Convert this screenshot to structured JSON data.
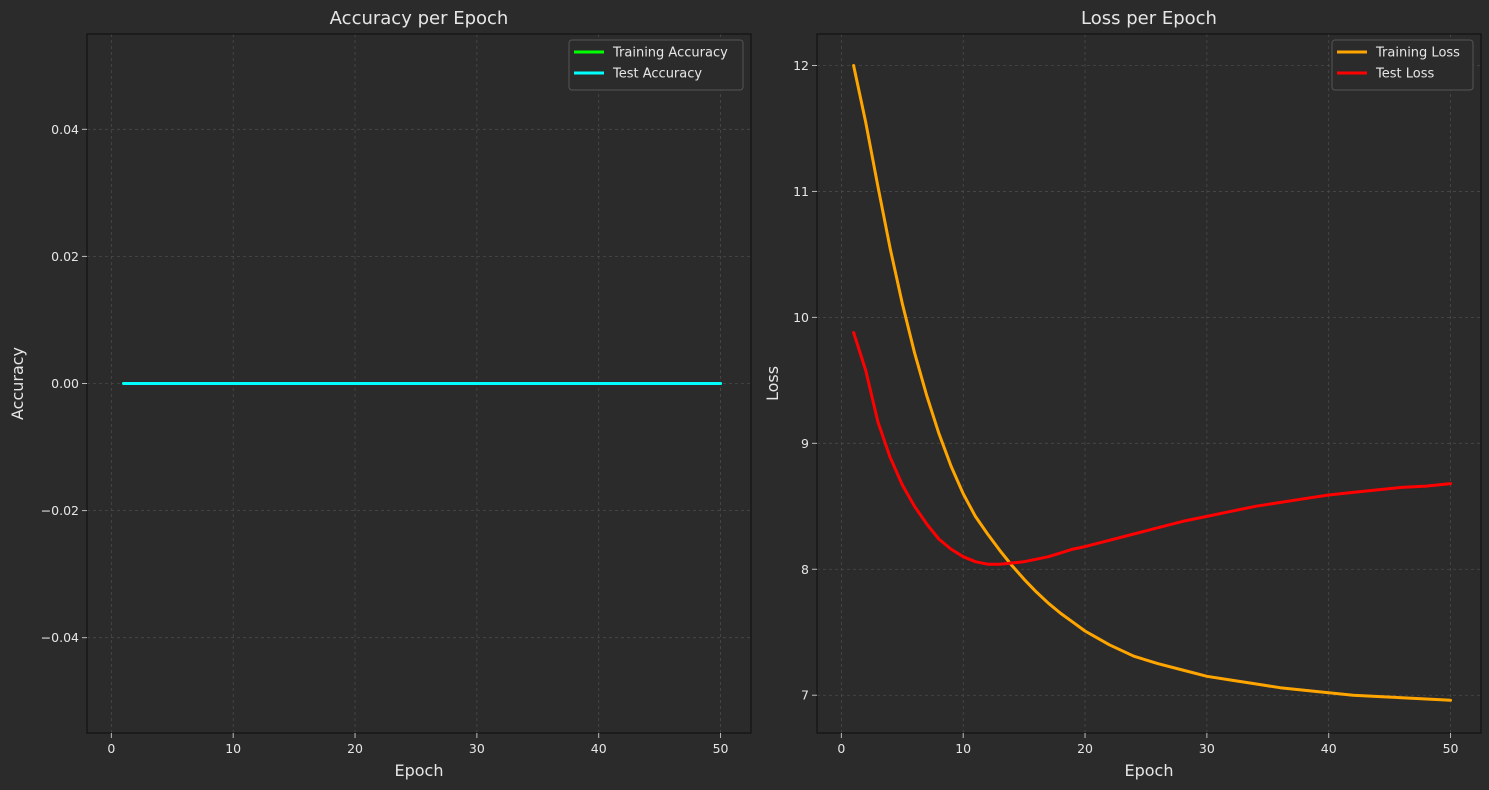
{
  "chart_data": [
    {
      "type": "line",
      "title": "Accuracy per Epoch",
      "xlabel": "Epoch",
      "ylabel": "Accuracy",
      "xlim": [
        -2,
        52.5
      ],
      "ylim": [
        -0.055,
        0.055
      ],
      "xticks": [
        0,
        10,
        20,
        30,
        40,
        50
      ],
      "yticks": [
        -0.04,
        -0.02,
        0.0,
        0.02,
        0.04
      ],
      "ytick_labels": [
        "−0.04",
        "−0.02",
        "0.00",
        "0.02",
        "0.04"
      ],
      "grid": true,
      "legend": "top-right",
      "x": [
        1,
        50
      ],
      "series": [
        {
          "name": "Training Accuracy",
          "color": "#00ff00",
          "values": [
            0.0,
            0.0
          ]
        },
        {
          "name": "Test Accuracy",
          "color": "#00ffff",
          "values": [
            0.0,
            0.0
          ]
        }
      ]
    },
    {
      "type": "line",
      "title": "Loss per Epoch",
      "xlabel": "Epoch",
      "ylabel": "Loss",
      "xlim": [
        -2,
        52.5
      ],
      "ylim": [
        6.7,
        12.25
      ],
      "xticks": [
        0,
        10,
        20,
        30,
        40,
        50
      ],
      "yticks": [
        7,
        8,
        9,
        10,
        11,
        12
      ],
      "ytick_labels": [
        "7",
        "8",
        "9",
        "10",
        "11",
        "12"
      ],
      "grid": true,
      "legend": "top-right",
      "x": [
        1,
        2,
        3,
        4,
        5,
        6,
        7,
        8,
        9,
        10,
        11,
        12,
        13,
        14,
        15,
        16,
        17,
        18,
        19,
        20,
        22,
        24,
        26,
        28,
        30,
        32,
        34,
        36,
        38,
        40,
        42,
        44,
        46,
        48,
        50
      ],
      "series": [
        {
          "name": "Training Loss",
          "color": "#ffa500",
          "values": [
            12.0,
            11.55,
            11.04,
            10.55,
            10.11,
            9.72,
            9.38,
            9.08,
            8.82,
            8.6,
            8.42,
            8.28,
            8.15,
            8.03,
            7.92,
            7.82,
            7.73,
            7.65,
            7.58,
            7.51,
            7.4,
            7.31,
            7.25,
            7.2,
            7.15,
            7.12,
            7.09,
            7.06,
            7.04,
            7.02,
            7.0,
            6.99,
            6.98,
            6.97,
            6.96
          ]
        },
        {
          "name": "Test Loss",
          "color": "#ff0000",
          "values": [
            9.88,
            9.58,
            9.17,
            8.89,
            8.67,
            8.5,
            8.36,
            8.24,
            8.16,
            8.1,
            8.06,
            8.04,
            8.04,
            8.05,
            8.06,
            8.08,
            8.1,
            8.13,
            8.16,
            8.18,
            8.23,
            8.28,
            8.33,
            8.38,
            8.42,
            8.46,
            8.5,
            8.53,
            8.56,
            8.59,
            8.61,
            8.63,
            8.65,
            8.66,
            8.68
          ]
        }
      ]
    }
  ]
}
